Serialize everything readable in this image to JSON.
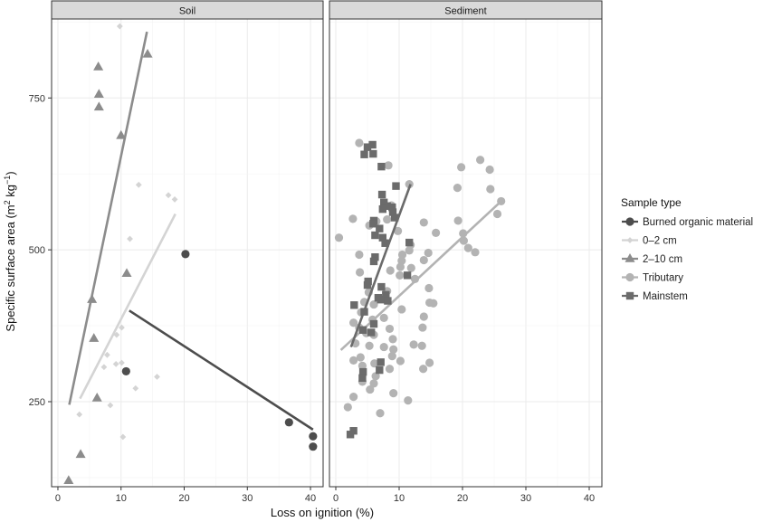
{
  "chart_data": {
    "type": "scatter",
    "xlabel": "Loss on ignition (%)",
    "ylabel_main": "Specific surface area (m",
    "ylabel_sup1": "2",
    "ylabel_mid": " kg",
    "ylabel_sup2": "−1",
    "ylabel_end": ")",
    "xlim": [
      -1,
      42
    ],
    "ylim": [
      110,
      880
    ],
    "x_ticks": [
      0,
      10,
      20,
      30,
      40
    ],
    "y_ticks": [
      250,
      500,
      750
    ],
    "x_tick_labels": [
      "0",
      "10",
      "20",
      "30",
      "40"
    ],
    "y_tick_labels": [
      "250",
      "500",
      "750"
    ],
    "grid": true,
    "legend_title": "Sample type",
    "legend_position": "right",
    "colors": {
      "burned": "#4d4d4d",
      "cm02": "#d4d4d4",
      "cm210": "#8c8c8c",
      "tributary": "#b3b3b3",
      "mainstem": "#6b6b6b"
    },
    "series_meta": [
      {
        "key": "burned",
        "name": "Burned organic material",
        "shape": "circle"
      },
      {
        "key": "cm02",
        "name": "0–2 cm",
        "shape": "diamond"
      },
      {
        "key": "cm210",
        "name": "2–10 cm",
        "shape": "triangle"
      },
      {
        "key": "tributary",
        "name": "Tributary",
        "shape": "circle"
      },
      {
        "key": "mainstem",
        "name": "Mainstem",
        "shape": "square"
      }
    ],
    "panels": [
      {
        "title": "Soil",
        "series": [
          {
            "key": "burned",
            "points": [
              [
                20.2,
                493
              ],
              [
                10.8,
                300
              ],
              [
                36.6,
                216
              ],
              [
                40.4,
                193
              ],
              [
                40.4,
                176
              ]
            ],
            "fit": [
              [
                11.3,
                400
              ],
              [
                40.4,
                204
              ]
            ]
          },
          {
            "key": "cm02",
            "points": [
              [
                9.8,
                868
              ],
              [
                12.8,
                607
              ],
              [
                17.5,
                590
              ],
              [
                18.5,
                583
              ],
              [
                11.4,
                518
              ],
              [
                10.1,
                372
              ],
              [
                9.3,
                360
              ],
              [
                7.8,
                327
              ],
              [
                9.2,
                312
              ],
              [
                10.1,
                314
              ],
              [
                7.3,
                307
              ],
              [
                15.7,
                291
              ],
              [
                12.3,
                272
              ],
              [
                3.4,
                229
              ],
              [
                8.3,
                244
              ],
              [
                10.3,
                192
              ]
            ],
            "fit": [
              [
                3.5,
                255
              ],
              [
                18.6,
                559
              ]
            ]
          },
          {
            "key": "cm210",
            "points": [
              [
                14.2,
                822
              ],
              [
                6.4,
                801
              ],
              [
                6.5,
                756
              ],
              [
                6.5,
                735
              ],
              [
                10.0,
                688
              ],
              [
                10.9,
                461
              ],
              [
                5.4,
                418
              ],
              [
                5.7,
                354
              ],
              [
                6.2,
                256
              ],
              [
                3.6,
                163
              ],
              [
                1.7,
                120
              ]
            ],
            "fit": [
              [
                1.8,
                245
              ],
              [
                14.1,
                859
              ]
            ]
          },
          {
            "key": "tributary",
            "points": [],
            "fit": null
          },
          {
            "key": "mainstem",
            "points": [],
            "fit": null
          }
        ]
      },
      {
        "title": "Sediment",
        "series": [
          {
            "key": "burned",
            "points": [],
            "fit": null
          },
          {
            "key": "cm02",
            "points": [],
            "fit": null
          },
          {
            "key": "cm210",
            "points": [],
            "fit": null
          },
          {
            "key": "tributary",
            "points": [
              [
                3.7,
                676
              ],
              [
                8.3,
                639
              ],
              [
                22.8,
                648
              ],
              [
                19.8,
                636
              ],
              [
                24.3,
                632
              ],
              [
                19.2,
                602
              ],
              [
                24.4,
                600
              ],
              [
                11.6,
                608
              ],
              [
                26.1,
                580
              ],
              [
                25.5,
                559
              ],
              [
                8.8,
                573
              ],
              [
                8.1,
                550
              ],
              [
                19.3,
                548
              ],
              [
                13.9,
                545
              ],
              [
                2.7,
                551
              ],
              [
                6.4,
                547
              ],
              [
                5.3,
                540
              ],
              [
                9.8,
                531
              ],
              [
                15.8,
                528
              ],
              [
                20.1,
                527
              ],
              [
                0.5,
                520
              ],
              [
                20.2,
                515
              ],
              [
                11.8,
                508
              ],
              [
                20.9,
                503
              ],
              [
                22.0,
                496
              ],
              [
                11.6,
                499
              ],
              [
                14.6,
                495
              ],
              [
                3.7,
                492
              ],
              [
                10.5,
                492
              ],
              [
                13.9,
                483
              ],
              [
                10.4,
                482
              ],
              [
                10.2,
                472
              ],
              [
                11.9,
                470
              ],
              [
                8.6,
                466
              ],
              [
                3.8,
                463
              ],
              [
                10.1,
                458
              ],
              [
                12.5,
                452
              ],
              [
                14.7,
                437
              ],
              [
                5.2,
                430
              ],
              [
                8.1,
                432
              ],
              [
                4.5,
                414
              ],
              [
                6.0,
                410
              ],
              [
                14.8,
                413
              ],
              [
                15.4,
                412
              ],
              [
                10.4,
                402
              ],
              [
                4.0,
                397
              ],
              [
                13.9,
                390
              ],
              [
                7.6,
                388
              ],
              [
                5.8,
                385
              ],
              [
                2.8,
                380
              ],
              [
                3.7,
                372
              ],
              [
                13.7,
                372
              ],
              [
                8.5,
                370
              ],
              [
                4.8,
                363
              ],
              [
                6.0,
                360
              ],
              [
                9.0,
                353
              ],
              [
                3.1,
                346
              ],
              [
                12.3,
                344
              ],
              [
                5.3,
                342
              ],
              [
                7.6,
                340
              ],
              [
                13.6,
                342
              ],
              [
                9.1,
                336
              ],
              [
                3.9,
                323
              ],
              [
                8.9,
                325
              ],
              [
                2.8,
                318
              ],
              [
                10.2,
                317
              ],
              [
                14.8,
                314
              ],
              [
                6.1,
                313
              ],
              [
                4.2,
                309
              ],
              [
                8.5,
                304
              ],
              [
                13.8,
                304
              ],
              [
                6.3,
                292
              ],
              [
                6.0,
                280
              ],
              [
                4.2,
                283
              ],
              [
                5.4,
                270
              ],
              [
                9.1,
                264
              ],
              [
                2.8,
                258
              ],
              [
                11.4,
                252
              ],
              [
                1.9,
                241
              ],
              [
                7.0,
                231
              ]
            ],
            "fit": [
              [
                0.8,
                335
              ],
              [
                26.1,
                580
              ]
            ]
          },
          {
            "key": "mainstem",
            "points": [
              [
                5.8,
                673
              ],
              [
                5.0,
                669
              ],
              [
                4.5,
                657
              ],
              [
                5.9,
                658
              ],
              [
                7.2,
                637
              ],
              [
                9.5,
                605
              ],
              [
                7.3,
                591
              ],
              [
                8.1,
                572
              ],
              [
                7.6,
                578
              ],
              [
                7.4,
                567
              ],
              [
                8.9,
                570
              ],
              [
                9.0,
                562
              ],
              [
                9.3,
                553
              ],
              [
                6.0,
                548
              ],
              [
                5.9,
                543
              ],
              [
                6.9,
                535
              ],
              [
                7.4,
                520
              ],
              [
                6.2,
                524
              ],
              [
                11.6,
                512
              ],
              [
                7.8,
                511
              ],
              [
                6.2,
                488
              ],
              [
                6.0,
                481
              ],
              [
                11.3,
                458
              ],
              [
                5.1,
                448
              ],
              [
                5.0,
                442
              ],
              [
                7.2,
                439
              ],
              [
                7.9,
                426
              ],
              [
                6.7,
                421
              ],
              [
                7.1,
                418
              ],
              [
                8.2,
                416
              ],
              [
                2.9,
                409
              ],
              [
                4.5,
                398
              ],
              [
                6.0,
                378
              ],
              [
                4.3,
                368
              ],
              [
                5.6,
                364
              ],
              [
                4.3,
                299
              ],
              [
                4.2,
                289
              ],
              [
                7.1,
                315
              ],
              [
                6.9,
                302
              ],
              [
                2.8,
                202
              ],
              [
                2.3,
                196
              ]
            ],
            "fit": [
              [
                2.4,
                340
              ],
              [
                11.8,
                608
              ]
            ]
          }
        ]
      }
    ]
  }
}
